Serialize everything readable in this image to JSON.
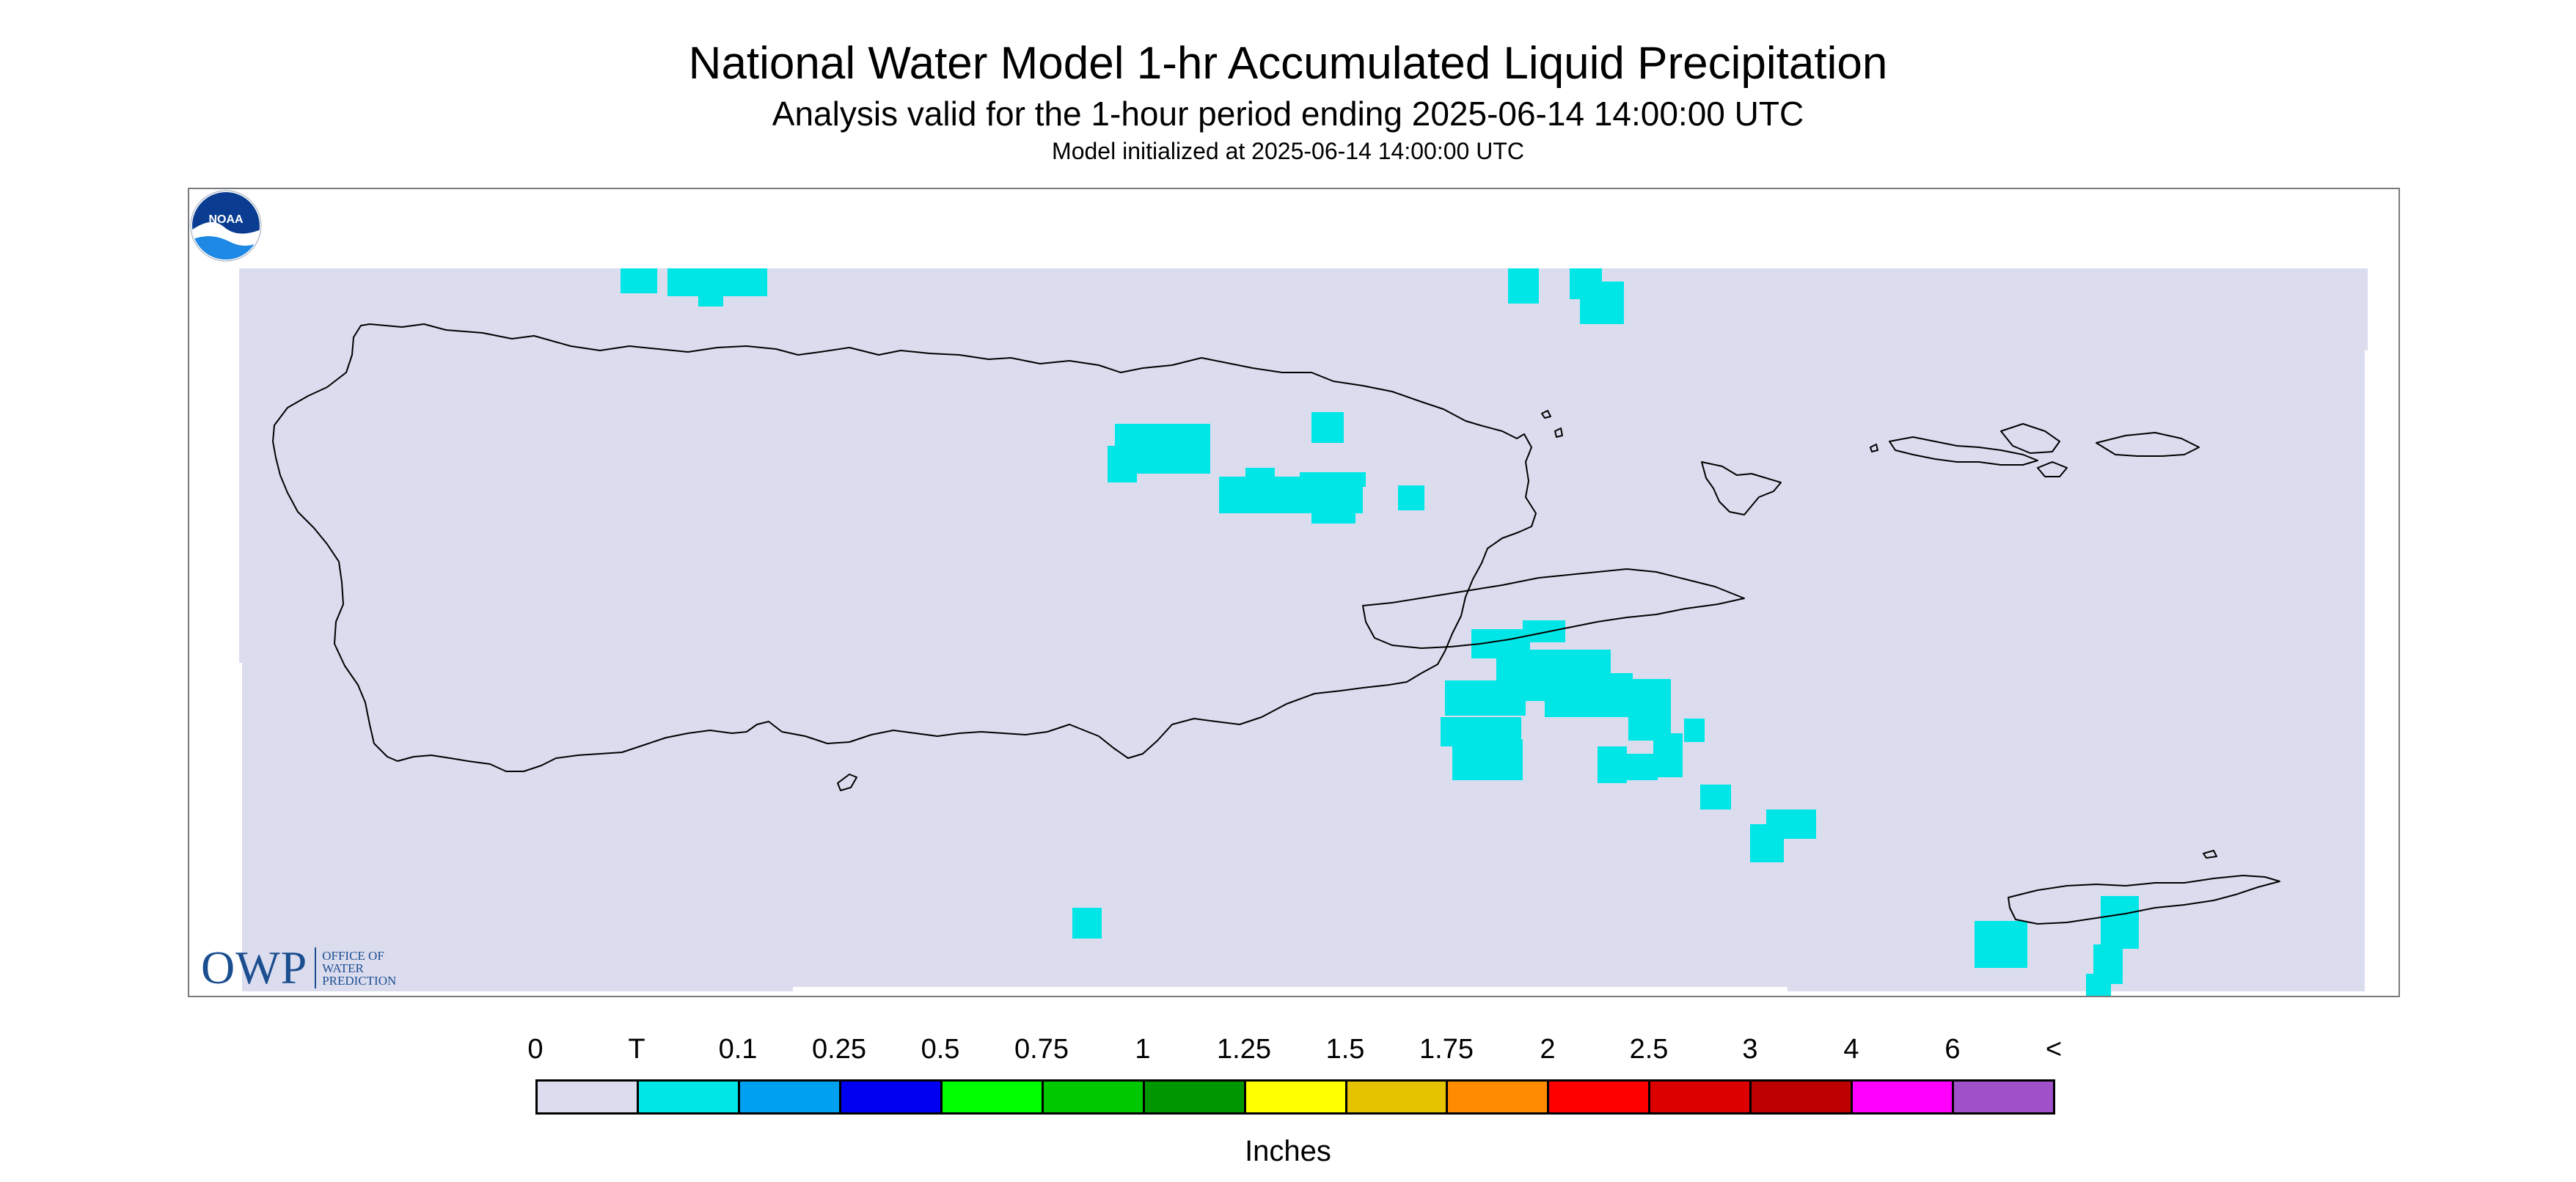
{
  "title": "National Water Model 1-hr Accumulated Liquid Precipitation",
  "subtitle": "Analysis valid for the 1-hour period ending 2025-06-14 14:00:00 UTC",
  "init_line": "Model initialized at 2025-06-14 14:00:00 UTC",
  "map": {
    "background_color": "#dcdcef",
    "precip_color": "#00e6e6",
    "coastline_color": "#000000"
  },
  "logos": {
    "owp": {
      "mark": "OWP",
      "lines": [
        "Office of",
        "Water",
        "Prediction"
      ]
    },
    "noaa": {
      "text": "NOAA"
    }
  },
  "legend": {
    "labels": [
      "0",
      "T",
      "0.1",
      "0.25",
      "0.5",
      "0.75",
      "1",
      "1.25",
      "1.5",
      "1.75",
      "2",
      "2.5",
      "3",
      "4",
      "6",
      "<"
    ],
    "colors": [
      "#dcdcef",
      "#00e6e6",
      "#00a0f0",
      "#0000f0",
      "#00ff00",
      "#00c800",
      "#009600",
      "#ffff00",
      "#e6c300",
      "#ff8c00",
      "#ff0000",
      "#dc0000",
      "#be0000",
      "#ff00ff",
      "#a050c8"
    ],
    "units": "Inches"
  }
}
